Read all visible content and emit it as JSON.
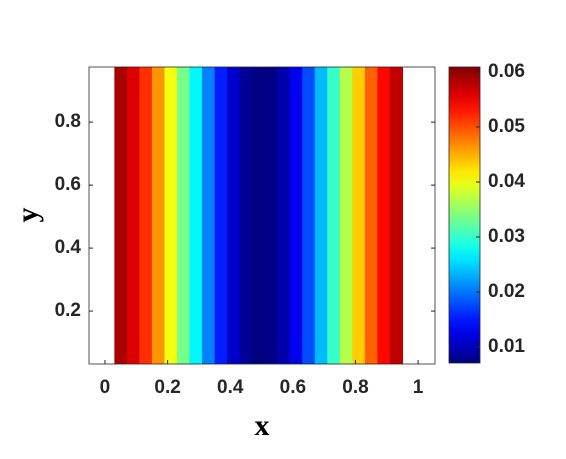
{
  "chart_data": {
    "type": "heatmap",
    "xlabel": "x",
    "ylabel": "y",
    "x": [
      0.05,
      0.09,
      0.13,
      0.17,
      0.21,
      0.25,
      0.29,
      0.33,
      0.37,
      0.41,
      0.45,
      0.49,
      0.53,
      0.57,
      0.61,
      0.65,
      0.69,
      0.73,
      0.77,
      0.81,
      0.85,
      0.89,
      0.93
    ],
    "values": [
      0.0587,
      0.0559,
      0.0517,
      0.0463,
      0.0401,
      0.0335,
      0.0269,
      0.0207,
      0.0153,
      0.0111,
      0.0083,
      0.0071,
      0.0075,
      0.0095,
      0.0131,
      0.0179,
      0.0237,
      0.0302,
      0.0368,
      0.0433,
      0.0491,
      0.0539,
      0.0575
    ],
    "xlim": [
      -0.051,
      1.054
    ],
    "xticks": [
      0,
      0.2,
      0.4,
      0.6,
      0.8,
      1
    ],
    "ylim": [
      0.032,
      0.975
    ],
    "yticks": [
      0.2,
      0.4,
      0.6,
      0.8
    ],
    "colormap": "jet",
    "colorbar": {
      "lim": [
        0.0071,
        0.0609
      ],
      "ticks": [
        0.01,
        0.02,
        0.03,
        0.04,
        0.05,
        0.06
      ]
    }
  }
}
